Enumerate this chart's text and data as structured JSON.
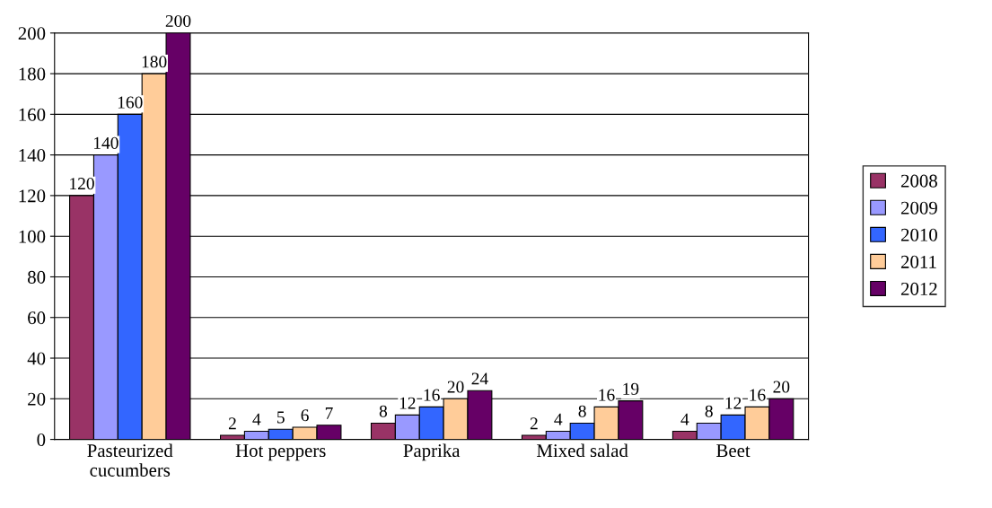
{
  "chart_data": {
    "type": "bar",
    "categories": [
      "Pasteurized\ncucumbers",
      "Hot peppers",
      "Paprika",
      "Mixed salad",
      "Beet"
    ],
    "series": [
      {
        "name": "2008",
        "color": "#993366",
        "values": [
          120,
          2,
          8,
          2,
          4
        ]
      },
      {
        "name": "2009",
        "color": "#9999ff",
        "values": [
          140,
          4,
          12,
          4,
          8
        ]
      },
      {
        "name": "2010",
        "color": "#3366ff",
        "values": [
          160,
          5,
          16,
          8,
          12
        ]
      },
      {
        "name": "2011",
        "color": "#ffcc99",
        "values": [
          180,
          6,
          20,
          16,
          16
        ]
      },
      {
        "name": "2012",
        "color": "#660066",
        "values": [
          200,
          7,
          24,
          19,
          20
        ]
      }
    ],
    "ylim": [
      0,
      200
    ],
    "yticks": [
      0,
      20,
      40,
      60,
      80,
      100,
      120,
      140,
      160,
      180,
      200
    ],
    "grid": "y",
    "legend": "right",
    "data_labels": true
  }
}
